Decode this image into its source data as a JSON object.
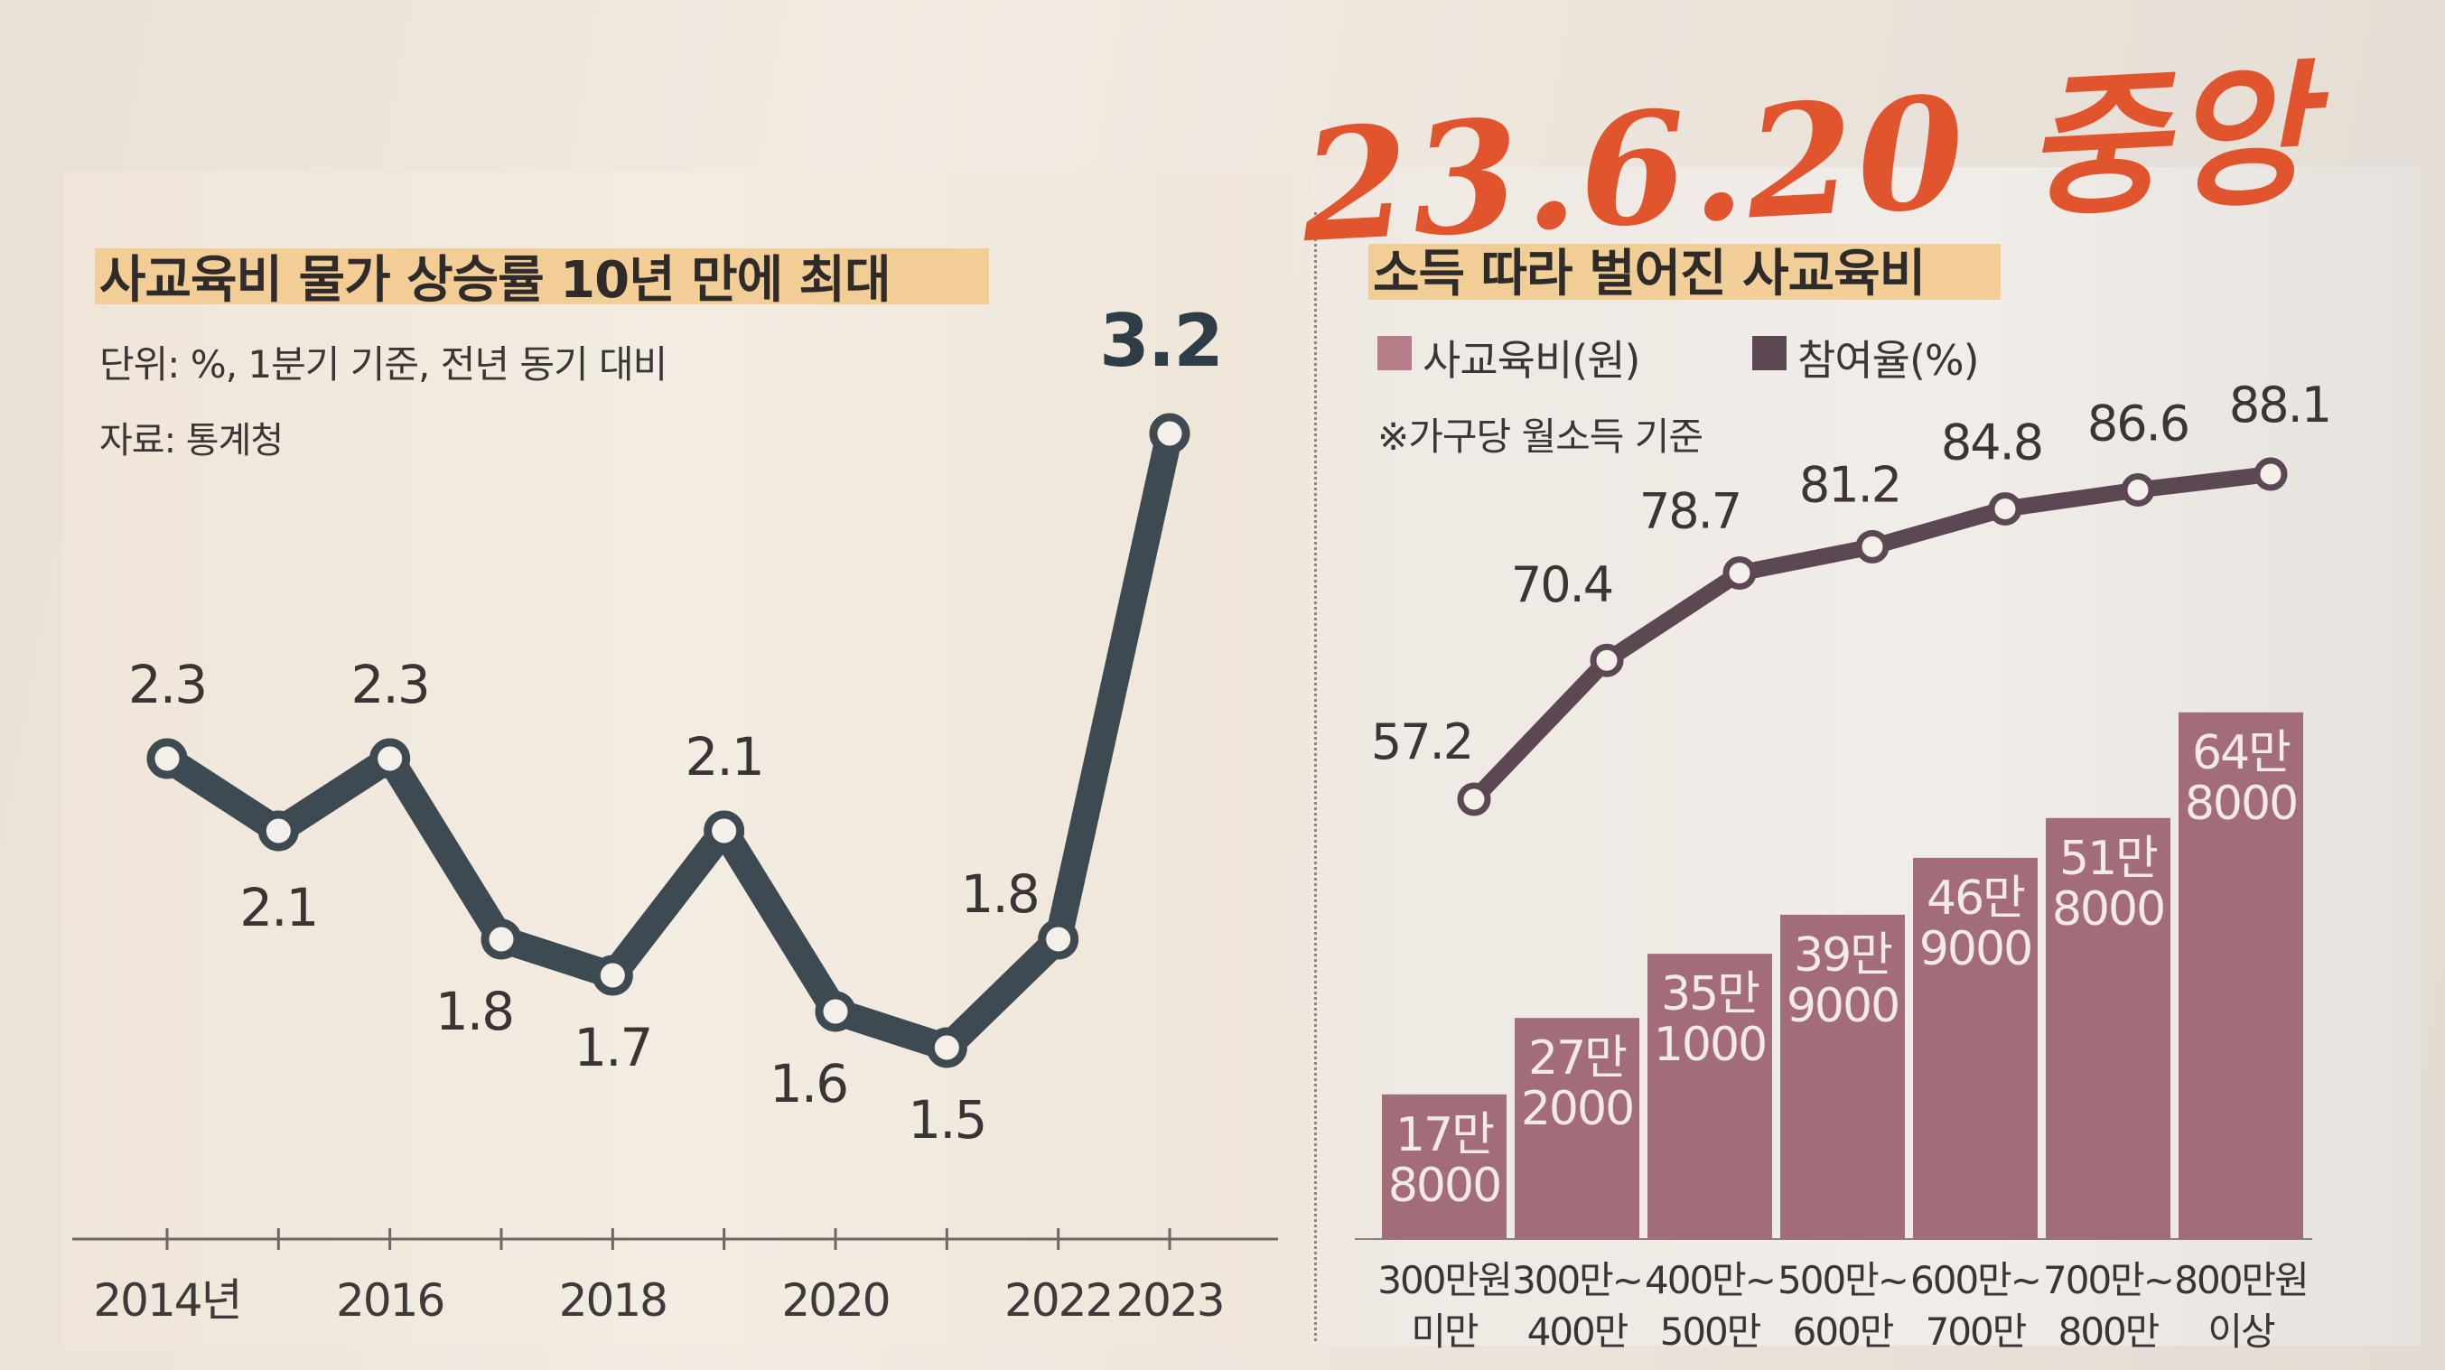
{
  "handwritten_note": "23.6.20 중앙",
  "chart_data": [
    {
      "type": "line",
      "title": "사교육비 물가 상승률 10년 만에 최대",
      "unit_note": "단위: %, 1분기 기준, 전년 동기 대비",
      "source": "자료: 통계청",
      "x": [
        2014,
        2015,
        2016,
        2017,
        2018,
        2019,
        2020,
        2021,
        2022,
        2023
      ],
      "values": [
        2.3,
        2.1,
        2.3,
        1.8,
        1.7,
        2.1,
        1.6,
        1.5,
        1.8,
        3.2
      ],
      "value_labels": [
        "2.3",
        "2.1",
        "2.3",
        "1.8",
        "1.7",
        "2.1",
        "1.6",
        "1.5",
        "1.8",
        "3.2"
      ],
      "tick_labels": [
        "2014년",
        "2016",
        "2018",
        "2020",
        "2022",
        "2023"
      ],
      "tick_years": [
        2014,
        2016,
        2018,
        2020,
        2022,
        2023
      ],
      "ylim": [
        1.2,
        3.4
      ],
      "line_color": "#3d4a52",
      "highlight_color": "#f2c98a"
    },
    {
      "type": "bar",
      "title": "소득 따라 벌어진 사교육비",
      "legend": [
        "사교육비(원)",
        "참여율(%)"
      ],
      "note": "※가구당 월소득 기준",
      "categories": [
        [
          "300만원",
          "미만"
        ],
        [
          "300만~",
          "400만"
        ],
        [
          "400만~",
          "500만"
        ],
        [
          "500만~",
          "600만"
        ],
        [
          "600만~",
          "700만"
        ],
        [
          "700만~",
          "800만"
        ],
        [
          "800만원",
          "이상"
        ]
      ],
      "series": [
        {
          "name": "사교육비(원)",
          "type": "bar",
          "values": [
            178000,
            272000,
            351000,
            399000,
            469000,
            518000,
            648000
          ],
          "labels": [
            [
              "17만",
              "8000"
            ],
            [
              "27만",
              "2000"
            ],
            [
              "35만",
              "1000"
            ],
            [
              "39만",
              "9000"
            ],
            [
              "46만",
              "9000"
            ],
            [
              "51만",
              "8000"
            ],
            [
              "64만",
              "8000"
            ]
          ],
          "color": "#a26d78"
        },
        {
          "name": "참여율(%)",
          "type": "line",
          "values": [
            57.2,
            70.4,
            78.7,
            81.2,
            84.8,
            86.6,
            88.1
          ],
          "labels": [
            "57.2",
            "70.4",
            "78.7",
            "81.2",
            "84.8",
            "86.6",
            "88.1"
          ],
          "color": "#5b4852"
        }
      ]
    }
  ]
}
